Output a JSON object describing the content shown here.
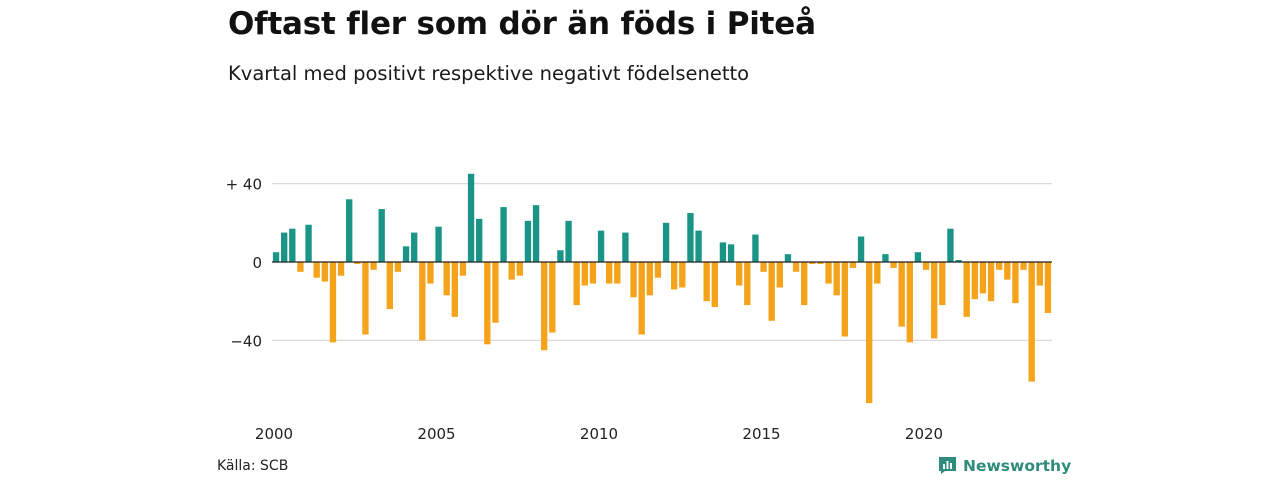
{
  "title": "Oftast fler som dör än föds i Piteå",
  "subtitle": "Kvartal med positivt respektive negativt födelsenetto",
  "source": "Källa: SCB",
  "brand": {
    "name": "Newsworthy",
    "icon": "newsworthy-logo-icon"
  },
  "colors": {
    "positive": "#1a9486",
    "negative": "#f5a31a",
    "grid": "#d9d9d9",
    "zero_line": "#222222"
  },
  "chart_data": {
    "type": "bar",
    "xlabel": "",
    "ylabel": "",
    "ylim": [
      -72,
      62
    ],
    "y_ticks": [
      40,
      0,
      -40
    ],
    "y_tick_labels": [
      "+ 40",
      "0",
      "−40"
    ],
    "x_tick_labels": [
      "2000",
      "2005",
      "2010",
      "2015",
      "2020"
    ],
    "quarters_start": "2000 Q1",
    "values": [
      5,
      15,
      17,
      -5,
      19,
      -8,
      -10,
      -41,
      -7,
      32,
      -1,
      -37,
      -4,
      27,
      -24,
      -5,
      8,
      15,
      -40,
      -11,
      18,
      -17,
      -28,
      -7,
      45,
      22,
      -42,
      -31,
      28,
      -9,
      -7,
      21,
      29,
      -45,
      -36,
      6,
      21,
      -22,
      -12,
      -11,
      16,
      -11,
      -11,
      15,
      -18,
      -37,
      -17,
      -8,
      20,
      -14,
      -13,
      25,
      16,
      -20,
      -23,
      10,
      9,
      -12,
      -22,
      14,
      -5,
      -30,
      -13,
      4,
      -5,
      -22,
      -1,
      -1,
      -11,
      -17,
      -38,
      -3,
      13,
      -72,
      -11,
      4,
      -3,
      -33,
      -41,
      5,
      -4,
      -39,
      -22,
      17,
      1,
      -28,
      -19,
      -16,
      -20,
      -4,
      -9,
      -21,
      -4,
      -61,
      -12,
      -26
    ]
  }
}
